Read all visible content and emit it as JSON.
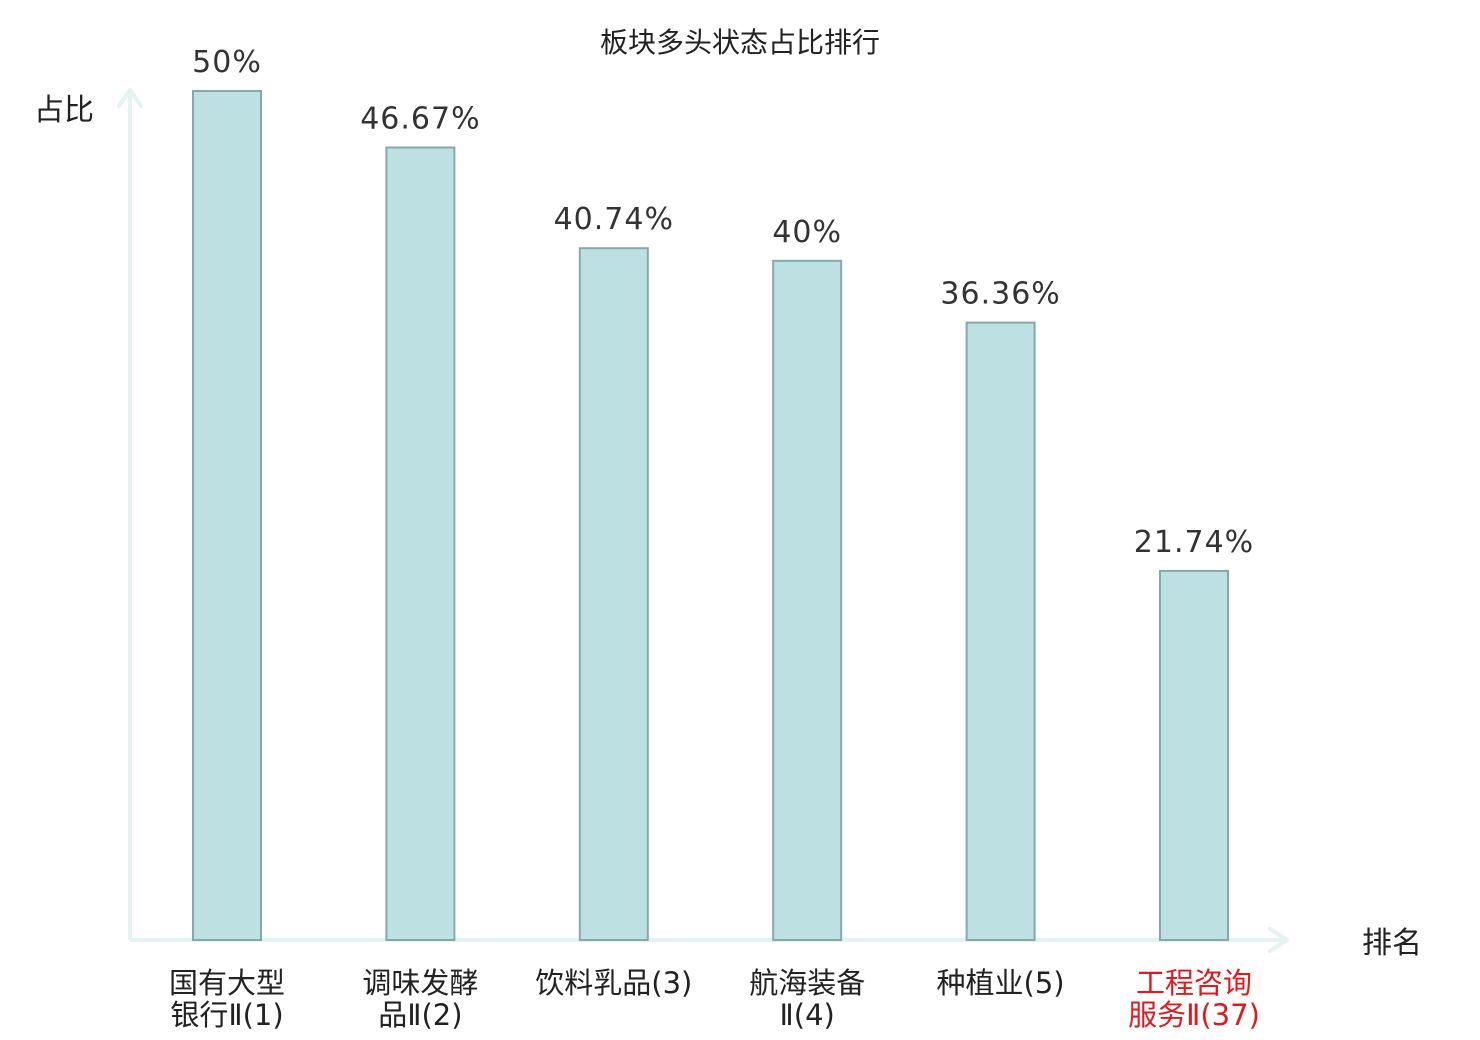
{
  "chart_data": {
    "type": "bar",
    "title": "板块多头状态占比排行",
    "ylabel": "占比",
    "xlabel": "排名",
    "categories": [
      [
        "国有大型",
        "银行Ⅱ(1)"
      ],
      [
        "调味发酵",
        "品Ⅱ(2)"
      ],
      [
        "饮料乳品(3)"
      ],
      [
        "航海装备",
        "Ⅱ(4)"
      ],
      [
        "种植业(5)"
      ],
      [
        "工程咨询",
        "服务Ⅱ(37)"
      ]
    ],
    "values": [
      50,
      46.67,
      40.74,
      40,
      36.36,
      21.74
    ],
    "value_labels": [
      "50%",
      "46.67%",
      "40.74%",
      "40%",
      "36.36%",
      "21.74%"
    ],
    "highlight_index": 5,
    "ylim": [
      0,
      50
    ],
    "grid": false,
    "colors": {
      "bar_fill": "#bde0e3",
      "bar_stroke": "#86a8ac",
      "axis": "#e2f3f1",
      "highlight_text": "#e0191e",
      "text": "#222222"
    }
  }
}
